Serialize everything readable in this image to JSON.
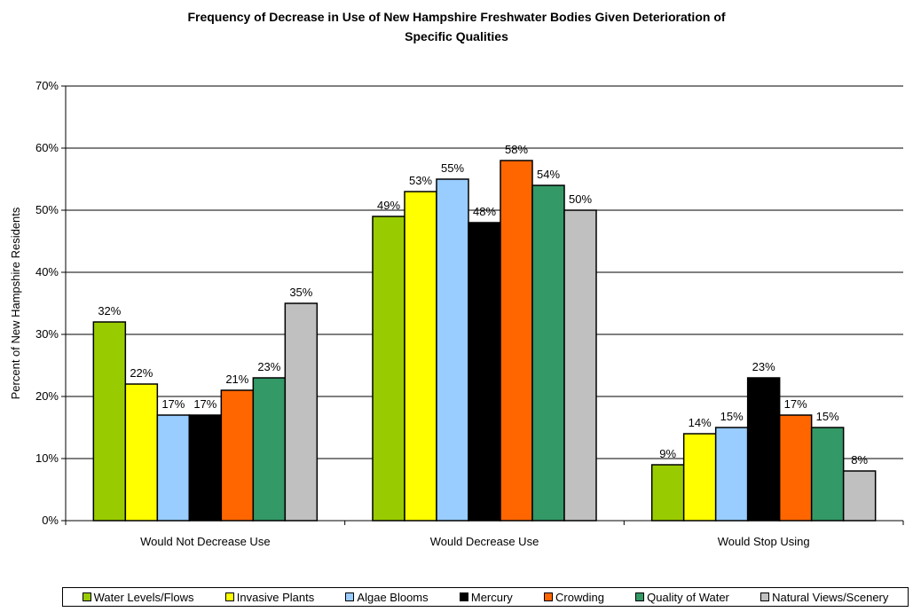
{
  "chart_data": {
    "type": "bar",
    "title_lines": [
      "Frequency of Decrease in Use of New Hampshire Freshwater Bodies Given Deterioration of",
      "Specific Qualities"
    ],
    "xlabel": "",
    "ylabel": "Percent of New Hampshire Residents",
    "ylim": [
      0,
      70
    ],
    "yticks": [
      "0%",
      "10%",
      "20%",
      "30%",
      "40%",
      "50%",
      "60%",
      "70%"
    ],
    "grid": true,
    "legend_position": "bottom",
    "categories": [
      "Would Not Decrease Use",
      "Would Decrease Use",
      "Would Stop Using"
    ],
    "series": [
      {
        "name": "Water Levels/Flows",
        "color": "#99cc00",
        "values": [
          32,
          49,
          9
        ]
      },
      {
        "name": "Invasive Plants",
        "color": "#ffff00",
        "values": [
          22,
          53,
          14
        ]
      },
      {
        "name": "Algae Blooms",
        "color": "#99ccff",
        "values": [
          17,
          55,
          15
        ]
      },
      {
        "name": "Mercury",
        "color": "#000000",
        "values": [
          17,
          48,
          23
        ]
      },
      {
        "name": "Crowding",
        "color": "#ff6600",
        "values": [
          21,
          58,
          17
        ]
      },
      {
        "name": "Quality of Water",
        "color": "#339966",
        "values": [
          23,
          54,
          15
        ]
      },
      {
        "name": "Natural Views/Scenery",
        "color": "#c0c0c0",
        "values": [
          35,
          50,
          8
        ]
      }
    ],
    "data_labels": [
      [
        "32%",
        "49%",
        "9%"
      ],
      [
        "22%",
        "53%",
        "14%"
      ],
      [
        "17%",
        "55%",
        "15%"
      ],
      [
        "17%",
        "48%",
        "23%"
      ],
      [
        "21%",
        "58%",
        "17%"
      ],
      [
        "23%",
        "54%",
        "15%"
      ],
      [
        "35%",
        "50%",
        "8%"
      ]
    ]
  }
}
